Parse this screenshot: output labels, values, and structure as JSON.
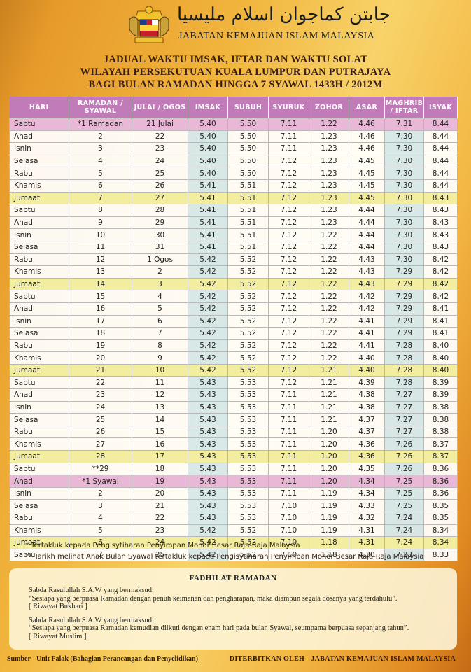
{
  "header": {
    "jawi_title": "جابتن كماجوان اسلام مليسيا",
    "department": "JABATAN KEMAJUAN ISLAM MALAYSIA"
  },
  "titles": {
    "line1": "JADUAL WAKTU IMSAK, IFTAR DAN WAKTU SOLAT",
    "line2": "WILAYAH PERSEKUTUAN KUALA LUMPUR DAN PUTRAJAYA",
    "line3": "BAGI BULAN RAMADAN HINGGA 7 SYAWAL 1433H / 2012M"
  },
  "columns": [
    "HARI",
    "RAMADAN / SYAWAL",
    "JULAI / OGOS",
    "IMSAK",
    "SUBUH",
    "SYURUK",
    "ZOHOR",
    "ASAR",
    "MAGHRIB / IFTAR",
    "ISYAK"
  ],
  "rows": [
    [
      "Sabtu",
      "*1 Ramadan",
      "21 Julai",
      "5.40",
      "5.50",
      "7.11",
      "1.22",
      "4.46",
      "7.31",
      "8.44"
    ],
    [
      "Ahad",
      "2",
      "22",
      "5.40",
      "5.50",
      "7.11",
      "1.23",
      "4.46",
      "7.30",
      "8.44"
    ],
    [
      "Isnin",
      "3",
      "23",
      "5.40",
      "5.50",
      "7.11",
      "1.23",
      "4.46",
      "7.30",
      "8.44"
    ],
    [
      "Selasa",
      "4",
      "24",
      "5.40",
      "5.50",
      "7.12",
      "1.23",
      "4.45",
      "7.30",
      "8.44"
    ],
    [
      "Rabu",
      "5",
      "25",
      "5.40",
      "5.50",
      "7.12",
      "1.23",
      "4.45",
      "7.30",
      "8.44"
    ],
    [
      "Khamis",
      "6",
      "26",
      "5.41",
      "5.51",
      "7.12",
      "1.23",
      "4.45",
      "7.30",
      "8.44"
    ],
    [
      "Jumaat",
      "7",
      "27",
      "5.41",
      "5.51",
      "7.12",
      "1.23",
      "4.45",
      "7.30",
      "8.43"
    ],
    [
      "Sabtu",
      "8",
      "28",
      "5.41",
      "5.51",
      "7.12",
      "1.23",
      "4.44",
      "7.30",
      "8.43"
    ],
    [
      "Ahad",
      "9",
      "29",
      "5.41",
      "5.51",
      "7.12",
      "1.23",
      "4.44",
      "7.30",
      "8.43"
    ],
    [
      "Isnin",
      "10",
      "30",
      "5.41",
      "5.51",
      "7.12",
      "1.22",
      "4.44",
      "7.30",
      "8.43"
    ],
    [
      "Selasa",
      "11",
      "31",
      "5.41",
      "5.51",
      "7.12",
      "1.22",
      "4.44",
      "7.30",
      "8.43"
    ],
    [
      "Rabu",
      "12",
      "1 Ogos",
      "5.42",
      "5.52",
      "7.12",
      "1.22",
      "4.43",
      "7.30",
      "8.42"
    ],
    [
      "Khamis",
      "13",
      "2",
      "5.42",
      "5.52",
      "7.12",
      "1.22",
      "4.43",
      "7.29",
      "8.42"
    ],
    [
      "Jumaat",
      "14",
      "3",
      "5.42",
      "5.52",
      "7.12",
      "1.22",
      "4.43",
      "7.29",
      "8.42"
    ],
    [
      "Sabtu",
      "15",
      "4",
      "5.42",
      "5.52",
      "7.12",
      "1.22",
      "4.42",
      "7.29",
      "8.42"
    ],
    [
      "Ahad",
      "16",
      "5",
      "5.42",
      "5.52",
      "7.12",
      "1.22",
      "4.42",
      "7.29",
      "8.41"
    ],
    [
      "Isnin",
      "17",
      "6",
      "5.42",
      "5.52",
      "7.12",
      "1.22",
      "4.41",
      "7.29",
      "8.41"
    ],
    [
      "Selasa",
      "18",
      "7",
      "5.42",
      "5.52",
      "7.12",
      "1.22",
      "4.41",
      "7.29",
      "8.41"
    ],
    [
      "Rabu",
      "19",
      "8",
      "5.42",
      "5.52",
      "7.12",
      "1.22",
      "4.41",
      "7.28",
      "8.40"
    ],
    [
      "Khamis",
      "20",
      "9",
      "5.42",
      "5.52",
      "7.12",
      "1.22",
      "4.40",
      "7.28",
      "8.40"
    ],
    [
      "Jumaat",
      "21",
      "10",
      "5.42",
      "5.52",
      "7.12",
      "1.21",
      "4.40",
      "7.28",
      "8.40"
    ],
    [
      "Sabtu",
      "22",
      "11",
      "5.43",
      "5.53",
      "7.12",
      "1.21",
      "4.39",
      "7.28",
      "8.39"
    ],
    [
      "Ahad",
      "23",
      "12",
      "5.43",
      "5.53",
      "7.11",
      "1.21",
      "4.38",
      "7.27",
      "8.39"
    ],
    [
      "Isnin",
      "24",
      "13",
      "5.43",
      "5.53",
      "7.11",
      "1.21",
      "4.38",
      "7.27",
      "8.38"
    ],
    [
      "Selasa",
      "25",
      "14",
      "5.43",
      "5.53",
      "7.11",
      "1.21",
      "4.37",
      "7.27",
      "8.38"
    ],
    [
      "Rabu",
      "26",
      "15",
      "5.43",
      "5.53",
      "7.11",
      "1.20",
      "4.37",
      "7.27",
      "8.38"
    ],
    [
      "Khamis",
      "27",
      "16",
      "5.43",
      "5.53",
      "7.11",
      "1.20",
      "4.36",
      "7.26",
      "8.37"
    ],
    [
      "Jumaat",
      "28",
      "17",
      "5.43",
      "5.53",
      "7.11",
      "1.20",
      "4.36",
      "7.26",
      "8.37"
    ],
    [
      "Sabtu",
      "**29",
      "18",
      "5.43",
      "5.53",
      "7.11",
      "1.20",
      "4.35",
      "7.26",
      "8.36"
    ],
    [
      "Ahad",
      "*1 Syawal",
      "19",
      "5.43",
      "5.53",
      "7.11",
      "1.20",
      "4.34",
      "7.25",
      "8.36"
    ],
    [
      "Isnin",
      "2",
      "20",
      "5.43",
      "5.53",
      "7.11",
      "1.19",
      "4.34",
      "7.25",
      "8.36"
    ],
    [
      "Selasa",
      "3",
      "21",
      "5.43",
      "5.53",
      "7.10",
      "1.19",
      "4.33",
      "7.25",
      "8.35"
    ],
    [
      "Rabu",
      "4",
      "22",
      "5.43",
      "5.53",
      "7.10",
      "1.19",
      "4.32",
      "7.24",
      "8.35"
    ],
    [
      "Khamis",
      "5",
      "23",
      "5.42",
      "5.52",
      "7.10",
      "1.19",
      "4.31",
      "7.24",
      "8.34"
    ],
    [
      "Jumaat",
      "6",
      "24",
      "5.42",
      "5.52",
      "7.10",
      "1.18",
      "4.31",
      "7.24",
      "8.34"
    ],
    [
      "Sabtu",
      "7",
      "25",
      "5.42",
      "5.52",
      "7.10",
      "1.18",
      "4.30",
      "7.23",
      "8.33"
    ]
  ],
  "notes": {
    "n1": "*  Tertakluk kepada Pengisytiharan Penyimpan Mohor Besar Raja-Raja Malaysia",
    "n2": "**  Tarikh melihat Anak Bulan Syawal tertakluk kepada Pengisytiharan Penyimpan Mohor Besar Raja-Raja Malaysia"
  },
  "fadhilat": {
    "title": "FADHILAT RAMADAN",
    "q1_intro": "Sabda Rasulullah S.A.W yang bermaksud:",
    "q1_text": "“Sesiapa yang berpuasa Ramadan dengan penuh keimanan dan pengharapan, maka diampun segala dosanya yang terdahulu”.",
    "q1_src": "[ Riwayat Bukhari ]",
    "q2_intro": "Sabda Rasulullah S.A.W yang bermaksud:",
    "q2_text": "“Sesiapa yang berpuasa Ramadan kemudian diikuti dengan enam hari pada bulan Syawal, seumpama berpuasa sepanjang tahun”.",
    "q2_src": "[ Riwayat Muslim ]"
  },
  "footer": {
    "source": "Sumber - Unit Falak (Bahagian Perancangan dan Penyelidikan)",
    "publisher": "DITERBITKAN OLEH - JABATAN KEMAJUAN ISLAM MALAYSIA"
  },
  "colors": {
    "header_purple": "#c07bb8",
    "friday_yellow": "#f3eda0",
    "first_day_pink": "#e9b8d6",
    "iftar_blue": "#d6eaee"
  }
}
